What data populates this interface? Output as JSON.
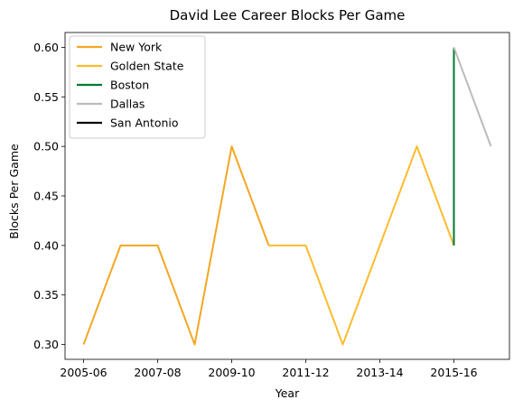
{
  "chart_data": {
    "type": "line",
    "title": "David Lee  Career Blocks Per Game",
    "xlabel": "Year",
    "ylabel": "Blocks Per Game",
    "x_tick_labels": [
      "2005-06",
      "2007-08",
      "2009-10",
      "2011-12",
      "2013-14",
      "2015-16"
    ],
    "y_ticks": [
      0.3,
      0.35,
      0.4,
      0.45,
      0.5,
      0.55,
      0.6
    ],
    "y_tick_labels": [
      "0.30",
      "0.35",
      "0.40",
      "0.45",
      "0.50",
      "0.55",
      "0.60"
    ],
    "x_seasons": [
      "2005-06",
      "2006-07",
      "2007-08",
      "2008-09",
      "2009-10",
      "2010-11",
      "2011-12",
      "2012-13",
      "2013-14",
      "2014-15",
      "2015-16",
      "2016-17"
    ],
    "ylim": [
      0.285,
      0.615
    ],
    "grid": false,
    "legend_position": "top-left",
    "series": [
      {
        "name": "New York",
        "color": "#f5a623",
        "x": [
          "2005-06",
          "2006-07",
          "2007-08",
          "2008-09",
          "2009-10",
          "2010-11"
        ],
        "y": [
          0.3,
          0.4,
          0.4,
          0.3,
          0.5,
          0.4
        ]
      },
      {
        "name": "Golden State",
        "color": "#fbbc2c",
        "x": [
          "2010-11",
          "2011-12",
          "2012-13",
          "2013-14",
          "2014-15",
          "2015-16"
        ],
        "y": [
          0.4,
          0.4,
          0.3,
          0.4,
          0.5,
          0.4
        ]
      },
      {
        "name": "Boston",
        "color": "#007a33",
        "x": [
          "2015-16",
          "2015-16"
        ],
        "y": [
          0.4,
          0.6
        ]
      },
      {
        "name": "Dallas",
        "color": "#bbbbbb",
        "x": [
          "2015-16",
          "2016-17"
        ],
        "y": [
          0.6,
          0.5
        ]
      },
      {
        "name": "San Antonio",
        "color": "#000000",
        "x": [],
        "y": []
      }
    ]
  }
}
